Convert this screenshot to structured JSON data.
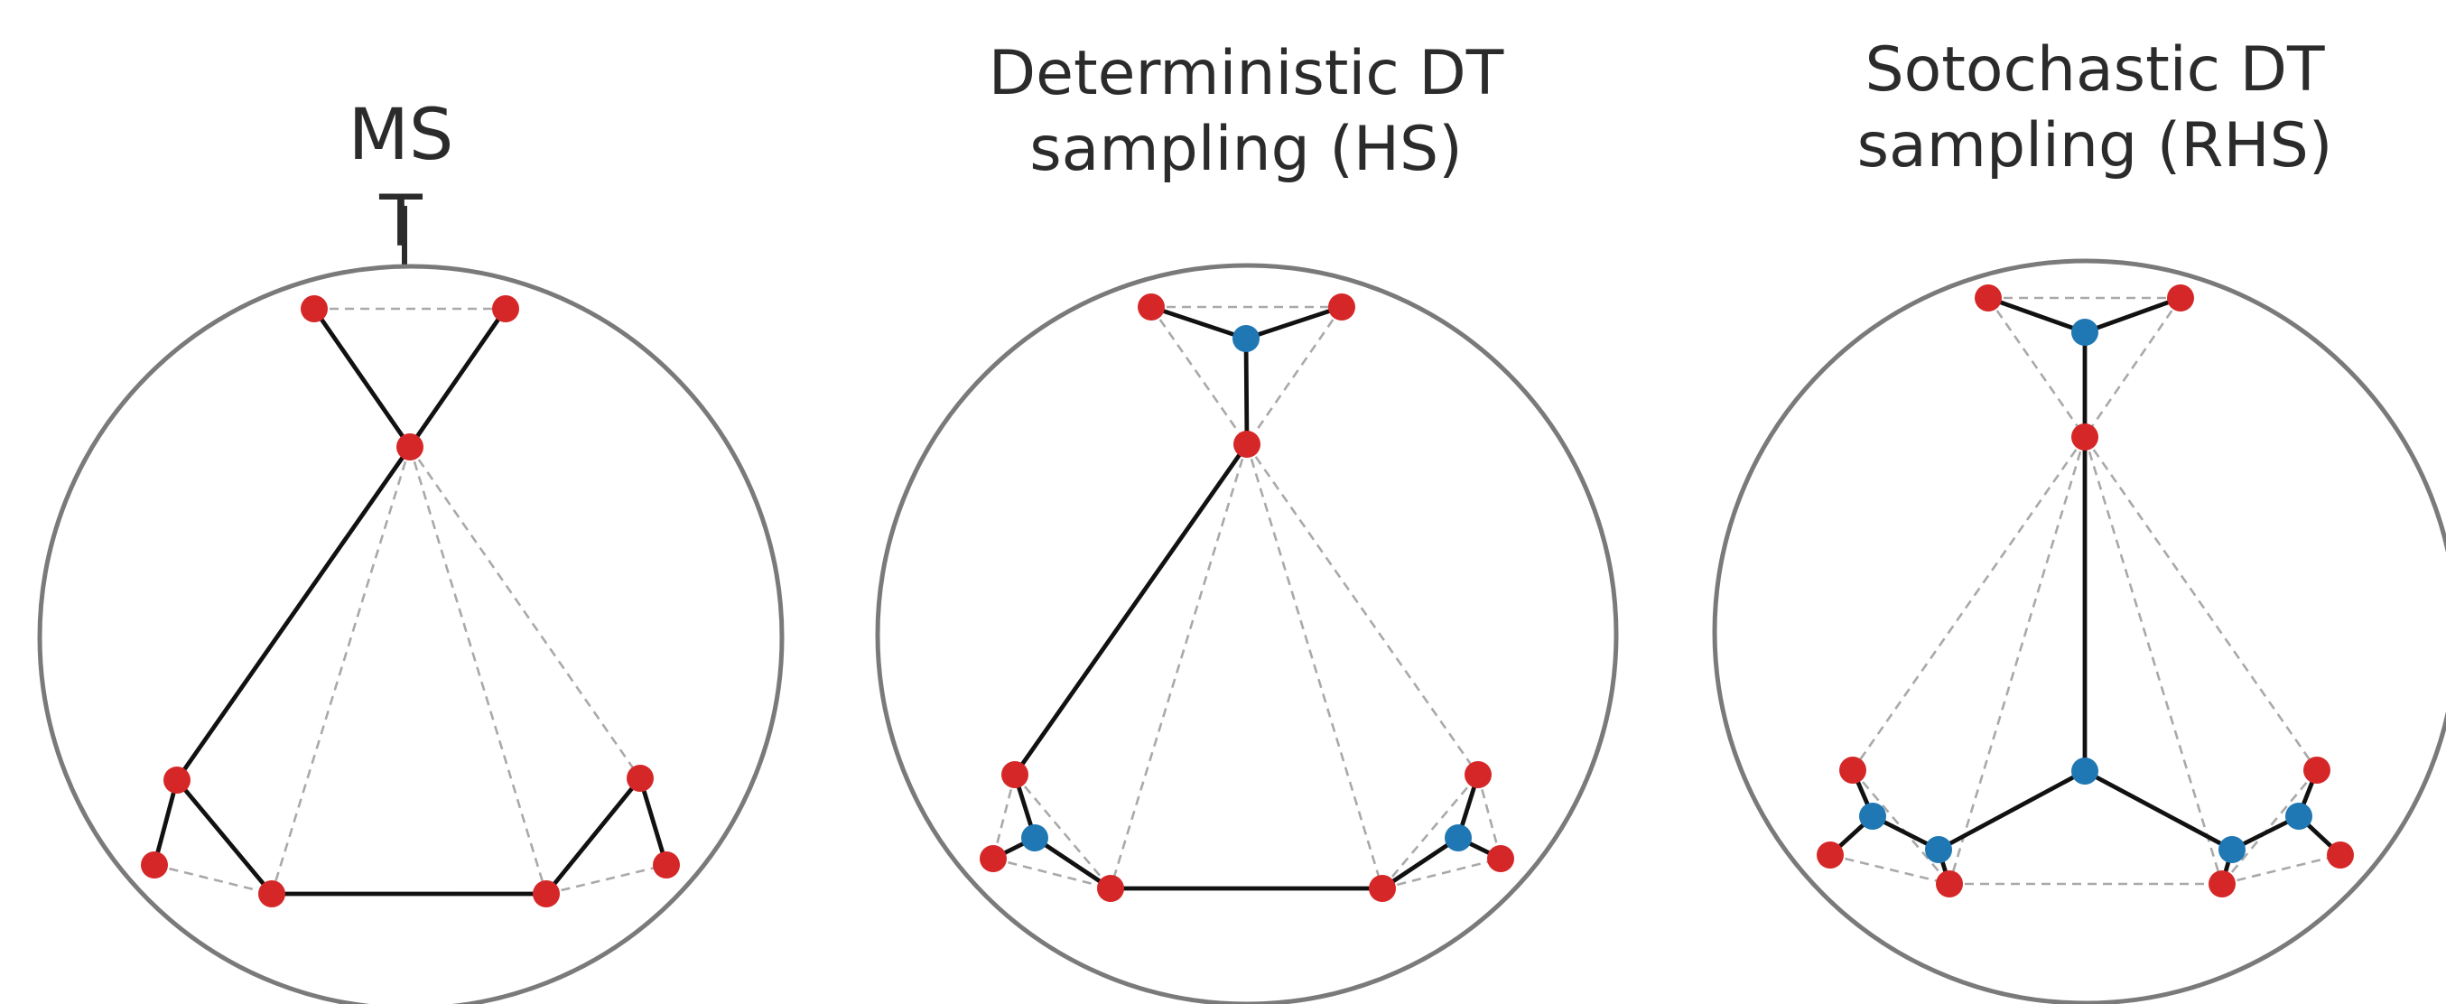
{
  "figure": {
    "panels": [
      {
        "id": "mst",
        "title_lines": [
          "MS",
          "T"
        ],
        "colors": {
          "terminal": "#d62728",
          "steiner": "#1f77b4",
          "circle": "#7a7a7a",
          "tree_edge": "#111111",
          "dt_edge": "#a9a9a9"
        }
      },
      {
        "id": "hs",
        "title_lines": [
          "Deterministic DT",
          "sampling (HS)"
        ],
        "colors": {
          "terminal": "#d62728",
          "steiner": "#1f77b4"
        }
      },
      {
        "id": "rhs",
        "title_lines": [
          "Sotochastic DT",
          "sampling (RHS)"
        ],
        "colors": {
          "terminal": "#d62728",
          "steiner": "#1f77b4"
        }
      }
    ]
  }
}
